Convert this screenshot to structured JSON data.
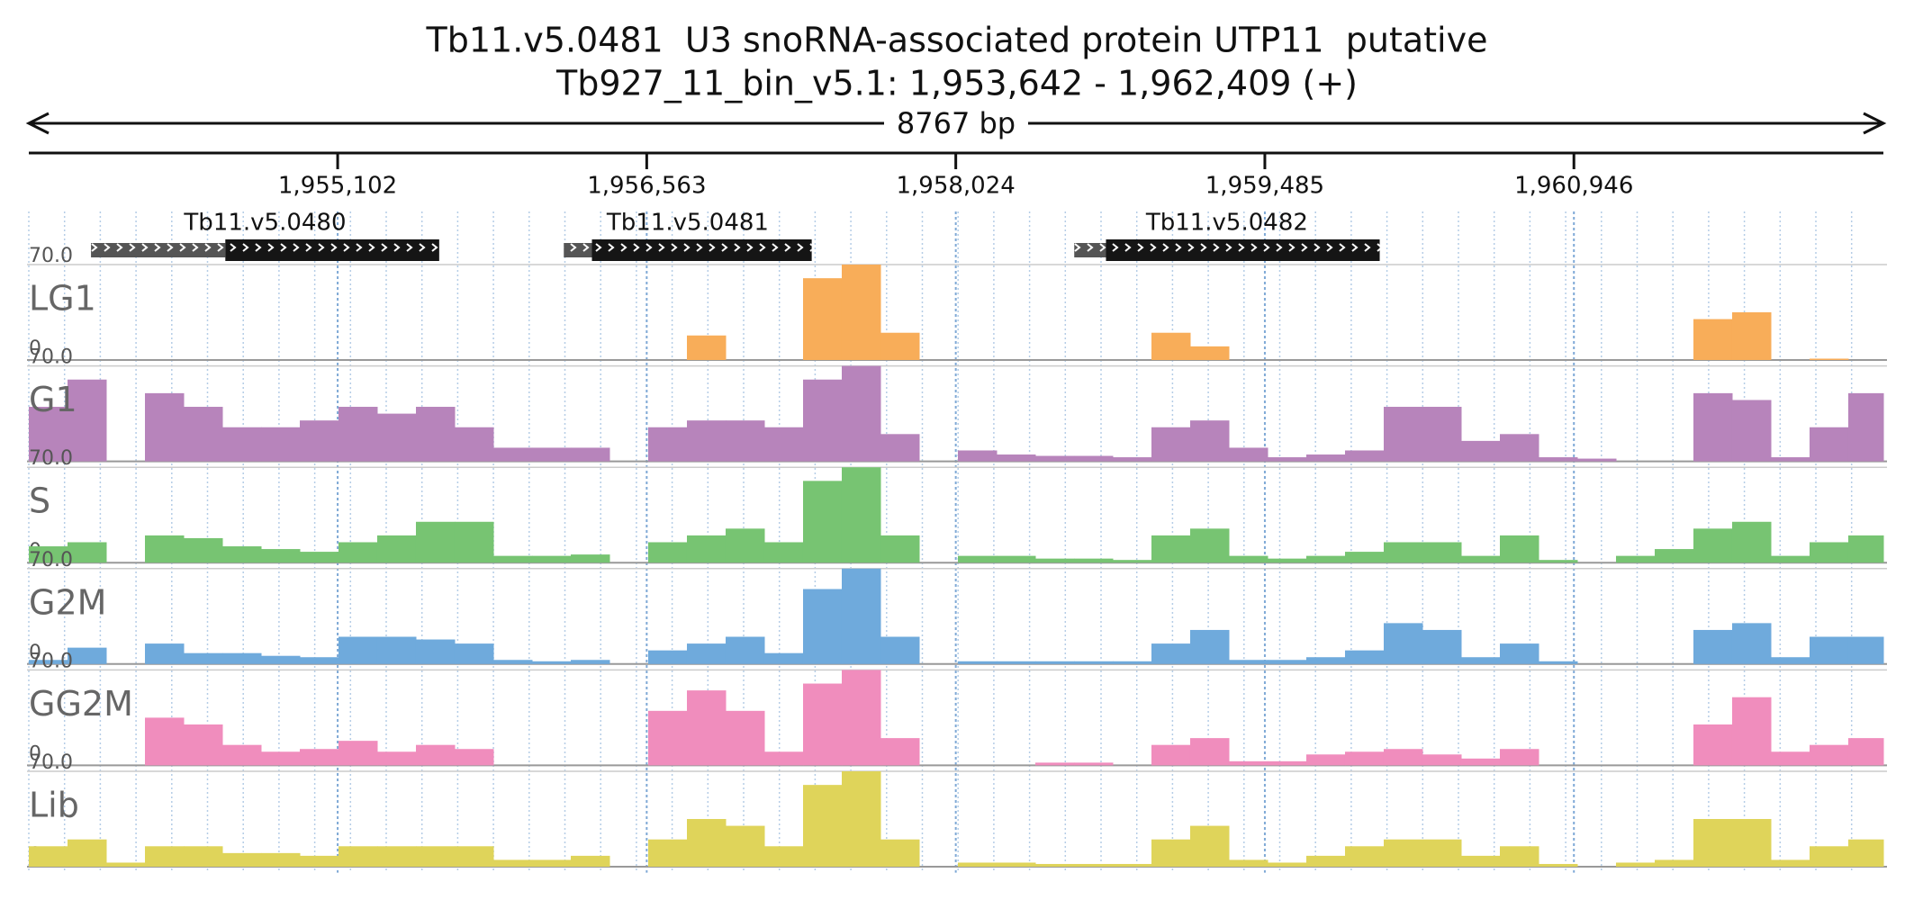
{
  "chart_data": {
    "type": "coverage",
    "title": "Tb11.v5.0481  U3 snoRNA-associated protein UTP11  putative",
    "subtitle": "Tb927_11_bin_v5.1: 1,953,642 - 1,962,409 (+)",
    "length_label": "8767 bp",
    "xlim": [
      1953642,
      1962409
    ],
    "xticks": [
      {
        "value": 1955102,
        "label": "1,955,102"
      },
      {
        "value": 1956563,
        "label": "1,956,563"
      },
      {
        "value": 1958024,
        "label": "1,958,024"
      },
      {
        "value": 1959485,
        "label": "1,959,485"
      },
      {
        "value": 1960946,
        "label": "1,960,946"
      }
    ],
    "genes": [
      {
        "name": "Tb11.v5.0480",
        "start": 1953936,
        "cds_start": 1954571,
        "end": 1955582
      },
      {
        "name": "Tb11.v5.0481",
        "start": 1956171,
        "cds_start": 1956304,
        "end": 1957343
      },
      {
        "name": "Tb11.v5.0482",
        "start": 1958584,
        "cds_start": 1958734,
        "end": 1960028
      }
    ],
    "ylim": [
      0,
      70
    ],
    "yticks": [
      0,
      {
        "value": 70,
        "label": "70.0"
      }
    ],
    "x": [
      1953642,
      1953825,
      1954008,
      1954191,
      1954374,
      1954557,
      1954740,
      1954923,
      1955106,
      1955289,
      1955472,
      1955655,
      1955838,
      1956021,
      1956204,
      1956387,
      1956570,
      1956753,
      1956936,
      1957119,
      1957302,
      1957485,
      1957668,
      1957851,
      1958034,
      1958217,
      1958400,
      1958583,
      1958766,
      1958949,
      1959132,
      1959315,
      1959498,
      1959681,
      1959864,
      1960047,
      1960230,
      1960413,
      1960596,
      1960779,
      1960962,
      1961145,
      1961328,
      1961511,
      1961694,
      1961877,
      1962060,
      1962243
    ],
    "series": [
      {
        "name": "LG1",
        "color": "#f8ad59",
        "values": [
          0,
          0,
          0,
          0,
          0,
          0,
          0,
          0,
          0,
          0,
          0,
          0,
          0,
          0,
          0,
          0,
          0,
          18,
          0,
          0,
          60,
          70,
          20,
          0,
          0,
          0,
          0,
          0,
          0,
          20,
          10,
          0,
          0,
          0,
          0,
          0,
          0,
          0,
          0,
          0,
          0,
          0,
          0,
          30,
          35,
          0,
          1,
          0
        ]
      },
      {
        "name": "G1",
        "color": "#b784bb",
        "values": [
          40,
          60,
          0,
          50,
          40,
          25,
          25,
          30,
          40,
          35,
          40,
          25,
          10,
          10,
          10,
          0,
          25,
          30,
          30,
          25,
          60,
          70,
          20,
          0,
          8,
          5,
          4,
          4,
          3,
          25,
          30,
          10,
          3,
          5,
          8,
          40,
          40,
          15,
          20,
          3,
          2,
          0,
          0,
          50,
          45,
          3,
          25,
          50
        ]
      },
      {
        "name": "S",
        "color": "#77c472",
        "values": [
          12,
          15,
          0,
          20,
          18,
          12,
          10,
          8,
          15,
          20,
          30,
          30,
          5,
          5,
          6,
          0,
          15,
          20,
          25,
          15,
          60,
          70,
          20,
          0,
          5,
          5,
          3,
          3,
          2,
          20,
          25,
          5,
          3,
          5,
          8,
          15,
          15,
          5,
          20,
          2,
          0,
          5,
          10,
          25,
          30,
          5,
          15,
          20
        ]
      },
      {
        "name": "G2M",
        "color": "#6faadc",
        "values": [
          3,
          12,
          0,
          15,
          8,
          8,
          6,
          5,
          20,
          20,
          18,
          15,
          3,
          2,
          3,
          0,
          10,
          15,
          20,
          8,
          55,
          70,
          20,
          0,
          2,
          2,
          2,
          2,
          2,
          15,
          25,
          3,
          3,
          5,
          10,
          30,
          25,
          5,
          15,
          2,
          0,
          0,
          0,
          25,
          30,
          5,
          20,
          20
        ]
      },
      {
        "name": "GG2M",
        "color": "#f08dbd",
        "values": [
          0,
          0,
          0,
          35,
          30,
          15,
          10,
          12,
          18,
          10,
          15,
          12,
          0,
          0,
          0,
          0,
          40,
          55,
          40,
          10,
          60,
          70,
          20,
          0,
          0,
          0,
          2,
          2,
          0,
          15,
          20,
          3,
          3,
          8,
          10,
          12,
          8,
          5,
          12,
          0,
          0,
          0,
          0,
          30,
          50,
          10,
          15,
          20
        ]
      },
      {
        "name": "Lib",
        "color": "#dfd45a",
        "values": [
          15,
          20,
          3,
          15,
          15,
          10,
          10,
          8,
          15,
          15,
          15,
          15,
          5,
          5,
          8,
          0,
          20,
          35,
          30,
          15,
          60,
          70,
          20,
          0,
          3,
          3,
          2,
          2,
          2,
          20,
          30,
          5,
          3,
          8,
          15,
          20,
          20,
          8,
          15,
          2,
          0,
          3,
          5,
          35,
          35,
          5,
          15,
          20
        ]
      }
    ]
  }
}
